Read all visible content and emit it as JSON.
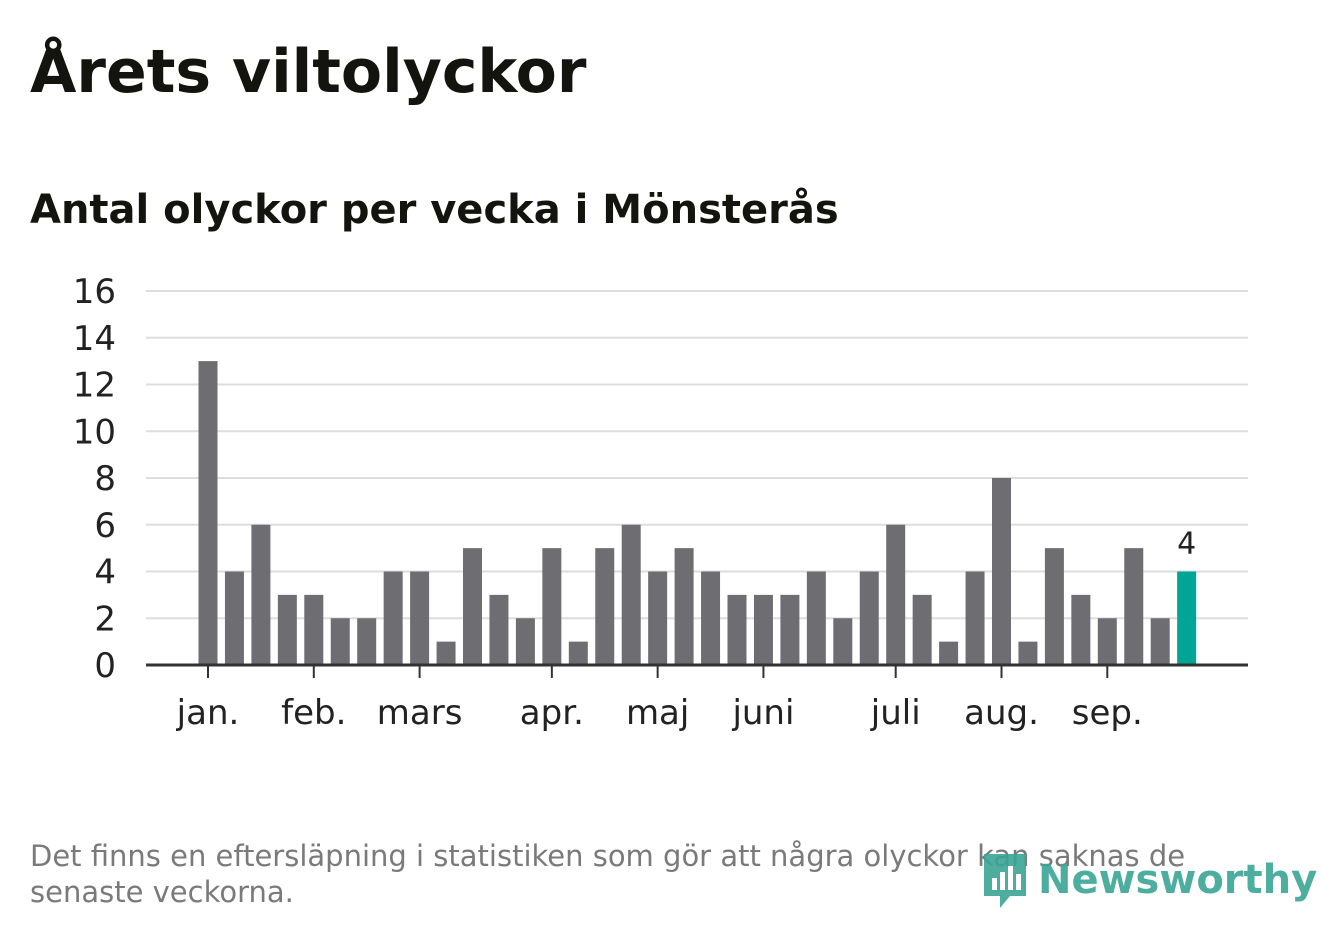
{
  "header": {
    "title": "Årets viltolyckor",
    "subtitle": "Antal olyckor per vecka i Mönsterås"
  },
  "chart_data": {
    "type": "bar",
    "title": "Antal olyckor per vecka i Mönsterås",
    "xlabel": "",
    "ylabel": "",
    "ylim": [
      0,
      16
    ],
    "yticks": [
      "0",
      "2",
      "4",
      "6",
      "8",
      "10",
      "12",
      "14",
      "16"
    ],
    "grid": true,
    "values": [
      13,
      4,
      6,
      3,
      3,
      2,
      2,
      4,
      4,
      1,
      5,
      3,
      2,
      5,
      1,
      5,
      6,
      4,
      5,
      4,
      3,
      3,
      3,
      4,
      2,
      4,
      6,
      3,
      1,
      4,
      8,
      1,
      5,
      3,
      2,
      5,
      2,
      4
    ],
    "month_labels": [
      {
        "label": "jan.",
        "bar_index": 0
      },
      {
        "label": "feb.",
        "bar_index": 4
      },
      {
        "label": "mars",
        "bar_index": 8
      },
      {
        "label": "apr.",
        "bar_index": 13
      },
      {
        "label": "maj",
        "bar_index": 17
      },
      {
        "label": "juni",
        "bar_index": 21
      },
      {
        "label": "juli",
        "bar_index": 26
      },
      {
        "label": "aug.",
        "bar_index": 30
      },
      {
        "label": "sep.",
        "bar_index": 34
      }
    ],
    "highlight_index": 37,
    "highlight_label": "4",
    "colors": {
      "bar": "#6e6d72",
      "highlight": "#00a596",
      "grid": "#dddddd",
      "axis": "#333333",
      "text": "#222222"
    }
  },
  "footer": {
    "note": "Det finns en eftersläpning i statistiken som gör att några olyckor kan saknas de senaste veckorna.",
    "brand": "Newsworthy"
  }
}
